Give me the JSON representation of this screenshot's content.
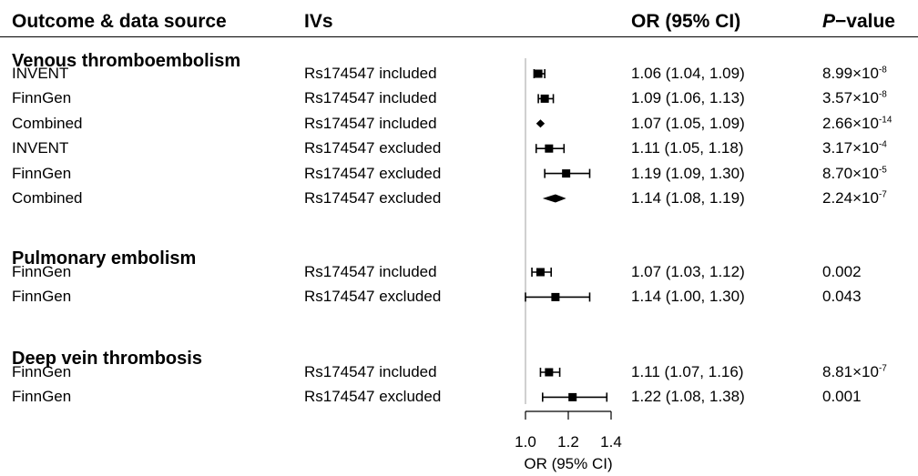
{
  "header": {
    "outcome": "Outcome & data source",
    "ivs": "IVs",
    "or": "OR (95% CI)",
    "p_italic": "P",
    "p_rest": "−value"
  },
  "sections": [
    {
      "title": "Venous thromboembolism",
      "rows": [
        {
          "source": "INVENT",
          "iv": "Rs174547 included",
          "or_text": "1.06 (1.04, 1.09)",
          "p_base": "8.99×10",
          "p_exp": "-8",
          "p_plain": "",
          "or": 1.06,
          "lo": 1.04,
          "hi": 1.09,
          "mark": "square"
        },
        {
          "source": "FinnGen",
          "iv": "Rs174547 included",
          "or_text": "1.09 (1.06, 1.13)",
          "p_base": "3.57×10",
          "p_exp": "-8",
          "p_plain": "",
          "or": 1.09,
          "lo": 1.06,
          "hi": 1.13,
          "mark": "square"
        },
        {
          "source": "Combined",
          "iv": "Rs174547 included",
          "or_text": "1.07 (1.05, 1.09)",
          "p_base": "2.66×10",
          "p_exp": "-14",
          "p_plain": "",
          "or": 1.07,
          "lo": 1.05,
          "hi": 1.09,
          "mark": "diamond"
        },
        {
          "source": "INVENT",
          "iv": "Rs174547 excluded",
          "or_text": "1.11 (1.05, 1.18)",
          "p_base": "3.17×10",
          "p_exp": "-4",
          "p_plain": "",
          "or": 1.11,
          "lo": 1.05,
          "hi": 1.18,
          "mark": "square"
        },
        {
          "source": "FinnGen",
          "iv": "Rs174547 excluded",
          "or_text": "1.19 (1.09, 1.30)",
          "p_base": "8.70×10",
          "p_exp": "-5",
          "p_plain": "",
          "or": 1.19,
          "lo": 1.09,
          "hi": 1.3,
          "mark": "square"
        },
        {
          "source": "Combined",
          "iv": "Rs174547 excluded",
          "or_text": "1.14 (1.08, 1.19)",
          "p_base": "2.24×10",
          "p_exp": "-7",
          "p_plain": "",
          "or": 1.14,
          "lo": 1.08,
          "hi": 1.19,
          "mark": "diamond"
        }
      ]
    },
    {
      "title": "Pulmonary embolism",
      "rows": [
        {
          "source": "FinnGen",
          "iv": "Rs174547 included",
          "or_text": "1.07 (1.03, 1.12)",
          "p_base": "",
          "p_exp": "",
          "p_plain": "0.002",
          "or": 1.07,
          "lo": 1.03,
          "hi": 1.12,
          "mark": "square"
        },
        {
          "source": "FinnGen",
          "iv": "Rs174547 excluded",
          "or_text": "1.14 (1.00, 1.30)",
          "p_base": "",
          "p_exp": "",
          "p_plain": "0.043",
          "or": 1.14,
          "lo": 1.0,
          "hi": 1.3,
          "mark": "square"
        }
      ]
    },
    {
      "title": "Deep vein thrombosis",
      "rows": [
        {
          "source": "FinnGen",
          "iv": "Rs174547 included",
          "or_text": "1.11 (1.07, 1.16)",
          "p_base": "8.81×10",
          "p_exp": "-7",
          "p_plain": "",
          "or": 1.11,
          "lo": 1.07,
          "hi": 1.16,
          "mark": "square"
        },
        {
          "source": "FinnGen",
          "iv": "Rs174547 excluded",
          "or_text": "1.22 (1.08, 1.38)",
          "p_base": "",
          "p_exp": "",
          "p_plain": "0.001",
          "or": 1.22,
          "lo": 1.08,
          "hi": 1.38,
          "mark": "square"
        }
      ]
    }
  ],
  "chart_data": {
    "type": "forest",
    "xlabel": "OR (95% CI)",
    "xlim": [
      1.0,
      1.4
    ],
    "xticks": [
      1.0,
      1.2,
      1.4
    ],
    "xtick_labels": [
      "1.0",
      "1.2",
      "1.4"
    ],
    "reference_line": 1.0,
    "colors": {
      "marks": "#000000",
      "reference": "#b0b0b0"
    }
  }
}
